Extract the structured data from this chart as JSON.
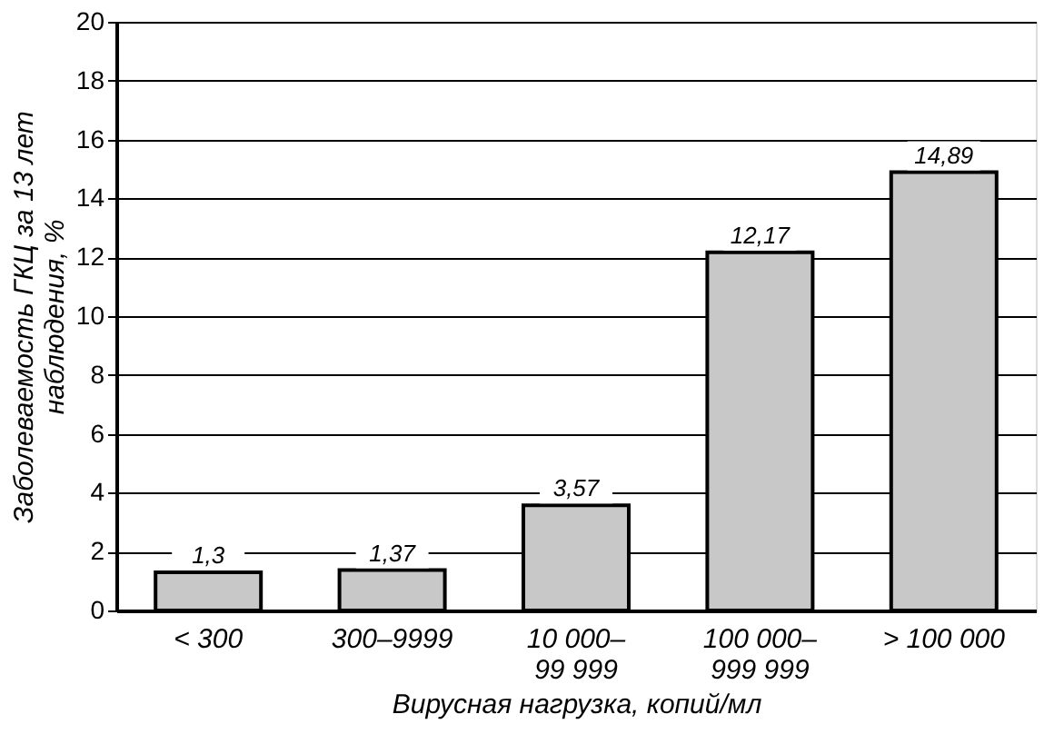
{
  "chart_data": {
    "type": "bar",
    "xlabel": "Вирусная нагрузка, копий/мл",
    "ylabel": "Заболеваемость ГКЦ за 13 лет\nнаблюдения, %",
    "categories": [
      "< 300",
      "300–9999",
      "10 000–\n99 999",
      "100 000–\n999 999",
      "> 100 000"
    ],
    "values": [
      1.3,
      1.37,
      3.57,
      12.17,
      14.89
    ],
    "value_labels": [
      "1,3",
      "1,37",
      "3,57",
      "12,17",
      "14,89"
    ],
    "color": "#c8c8c8",
    "ylim": [
      0,
      20
    ],
    "yticks": [
      0,
      2,
      4,
      6,
      8,
      10,
      12,
      14,
      16,
      18,
      20
    ],
    "grid": "y"
  }
}
